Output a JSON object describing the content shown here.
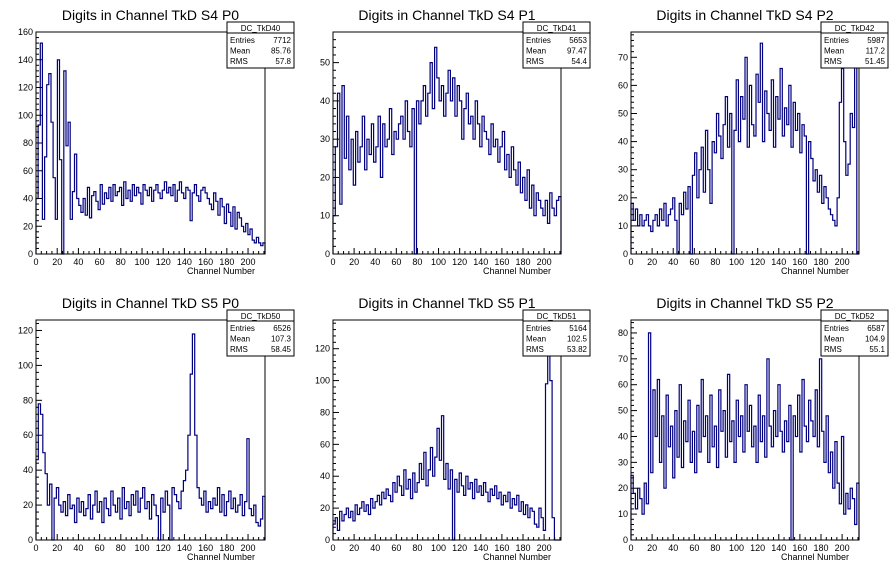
{
  "chart_data": [
    {
      "type": "histogram",
      "title": "Digits in Channel TkD S4 P0",
      "xlabel": "Channel Number",
      "xlim": [
        0,
        216
      ],
      "ylim": [
        0,
        160
      ],
      "xticks": [
        0,
        20,
        40,
        60,
        80,
        100,
        120,
        140,
        160,
        180,
        200
      ],
      "yticks": [
        0,
        20,
        40,
        60,
        80,
        100,
        120,
        140,
        160
      ],
      "stats": {
        "name": "DC_TkD40",
        "entries": "7712",
        "mean": "85.76",
        "rms": "57.8"
      },
      "values": [
        40,
        93,
        152,
        25,
        70,
        122,
        130,
        95,
        55,
        25,
        140,
        68,
        0,
        132,
        78,
        95,
        25,
        45,
        72,
        40,
        35,
        30,
        40,
        28,
        48,
        26,
        42,
        45,
        38,
        32,
        50,
        36,
        44,
        40,
        48,
        38,
        50,
        42,
        45,
        48,
        35,
        52,
        40,
        46,
        38,
        50,
        42,
        48,
        44,
        36,
        50,
        46,
        42,
        48,
        38,
        46,
        50,
        44,
        40,
        46,
        52,
        44,
        48,
        42,
        50,
        38,
        46,
        52,
        44,
        40,
        48,
        46,
        24,
        44,
        50,
        42,
        38,
        46,
        48,
        44,
        40,
        36,
        32,
        44,
        38,
        28,
        40,
        34,
        22,
        36,
        30,
        20,
        34,
        18,
        30,
        26,
        20,
        16,
        22,
        14,
        18,
        10,
        8,
        12,
        8,
        6,
        8
      ]
    },
    {
      "type": "histogram",
      "title": "Digits in Channel TkD S4 P1",
      "xlabel": "Channel Number",
      "xlim": [
        0,
        216
      ],
      "ylim": [
        0,
        58
      ],
      "xticks": [
        0,
        20,
        40,
        60,
        80,
        100,
        120,
        140,
        160,
        180,
        200
      ],
      "yticks": [
        0,
        10,
        20,
        30,
        40,
        50
      ],
      "stats": {
        "name": "DC_TkD41",
        "entries": "5653",
        "mean": "97.47",
        "rms": "54.4"
      },
      "values": [
        10,
        28,
        42,
        13,
        44,
        25,
        36,
        22,
        30,
        18,
        32,
        24,
        28,
        36,
        22,
        30,
        26,
        34,
        24,
        28,
        36,
        20,
        34,
        28,
        30,
        38,
        26,
        32,
        30,
        34,
        36,
        30,
        40,
        32,
        28,
        38,
        0,
        40,
        34,
        40,
        44,
        36,
        42,
        50,
        38,
        54,
        46,
        40,
        44,
        36,
        42,
        48,
        40,
        46,
        36,
        44,
        40,
        30,
        38,
        42,
        34,
        36,
        30,
        40,
        34,
        28,
        36,
        32,
        30,
        26,
        34,
        28,
        30,
        24,
        28,
        32,
        22,
        26,
        20,
        28,
        22,
        18,
        24,
        16,
        20,
        14,
        22,
        12,
        18,
        10,
        16,
        14,
        12,
        10,
        14,
        8,
        16,
        12,
        10,
        14,
        15
      ]
    },
    {
      "type": "histogram",
      "title": "Digits in Channel TkD S4 P2",
      "xlabel": "Channel Number",
      "xlim": [
        0,
        216
      ],
      "ylim": [
        0,
        79
      ],
      "xticks": [
        0,
        20,
        40,
        60,
        80,
        100,
        120,
        140,
        160,
        180,
        200
      ],
      "yticks": [
        0,
        10,
        20,
        30,
        40,
        50,
        60,
        70
      ],
      "stats": {
        "name": "DC_TkD42",
        "entries": "5987",
        "mean": "117.2",
        "rms": "51.45"
      },
      "values": [
        18,
        12,
        16,
        10,
        14,
        10,
        12,
        14,
        10,
        8,
        12,
        14,
        10,
        16,
        12,
        18,
        10,
        14,
        16,
        20,
        12,
        0,
        18,
        14,
        22,
        16,
        24,
        0,
        28,
        36,
        20,
        30,
        38,
        22,
        44,
        30,
        18,
        40,
        36,
        50,
        42,
        34,
        46,
        56,
        38,
        50,
        0,
        44,
        62,
        40,
        56,
        48,
        70,
        38,
        60,
        46,
        42,
        64,
        54,
        75,
        40,
        58,
        50,
        44,
        62,
        38,
        56,
        48,
        66,
        42,
        52,
        46,
        60,
        38,
        54,
        44,
        50,
        36,
        46,
        42,
        0,
        40,
        34,
        26,
        30,
        22,
        28,
        18,
        24,
        20,
        16,
        14,
        12,
        10,
        20,
        54,
        66,
        40,
        28,
        32,
        50,
        45,
        74,
        0
      ]
    },
    {
      "type": "histogram",
      "title": "Digits in Channel TkD S5 P0",
      "xlabel": "Channel Number",
      "xlim": [
        0,
        216
      ],
      "ylim": [
        0,
        126
      ],
      "xticks": [
        0,
        20,
        40,
        60,
        80,
        100,
        120,
        140,
        160,
        180,
        200
      ],
      "yticks": [
        0,
        20,
        40,
        60,
        80,
        100,
        120
      ],
      "stats": {
        "name": "DC_TkD50",
        "entries": "6526",
        "mean": "107.3",
        "rms": "58.45"
      },
      "values": [
        46,
        78,
        72,
        50,
        38,
        20,
        32,
        0,
        24,
        30,
        20,
        16,
        22,
        14,
        26,
        18,
        20,
        10,
        24,
        16,
        22,
        14,
        18,
        26,
        12,
        20,
        28,
        16,
        22,
        10,
        24,
        18,
        14,
        28,
        20,
        16,
        24,
        12,
        30,
        18,
        22,
        14,
        26,
        20,
        28,
        16,
        24,
        30,
        18,
        22,
        12,
        26,
        20,
        14,
        0,
        24,
        16,
        28,
        20,
        0,
        30,
        26,
        22,
        18,
        28,
        34,
        40,
        60,
        95,
        118,
        60,
        30,
        24,
        20,
        28,
        16,
        22,
        18,
        24,
        20,
        30,
        16,
        26,
        14,
        22,
        28,
        18,
        24,
        16,
        20,
        26,
        14,
        22,
        58,
        18,
        14,
        20,
        10,
        8,
        12,
        25
      ]
    },
    {
      "type": "histogram",
      "title": "Digits in Channel TkD S5 P1",
      "xlabel": "Channel Number",
      "xlim": [
        0,
        216
      ],
      "ylim": [
        0,
        138
      ],
      "xticks": [
        0,
        20,
        40,
        60,
        80,
        100,
        120,
        140,
        160,
        180,
        200
      ],
      "yticks": [
        0,
        20,
        40,
        60,
        80,
        100,
        120
      ],
      "stats": {
        "name": "DC_TkD51",
        "entries": "5164",
        "mean": "102.5",
        "rms": "53.82"
      },
      "values": [
        10,
        14,
        6,
        18,
        12,
        16,
        20,
        14,
        18,
        12,
        22,
        16,
        20,
        24,
        18,
        22,
        16,
        26,
        20,
        24,
        28,
        22,
        30,
        26,
        32,
        28,
        24,
        36,
        30,
        40,
        34,
        28,
        44,
        32,
        38,
        26,
        42,
        30,
        36,
        48,
        38,
        55,
        34,
        44,
        58,
        40,
        52,
        70,
        50,
        78,
        38,
        48,
        32,
        44,
        0,
        38,
        30,
        42,
        34,
        28,
        40,
        32,
        36,
        26,
        38,
        30,
        34,
        28,
        36,
        30,
        24,
        32,
        28,
        34,
        26,
        30,
        22,
        28,
        24,
        30,
        20,
        26,
        22,
        28,
        18,
        24,
        16,
        22,
        14,
        20,
        18,
        10,
        8,
        20,
        14,
        6,
        98,
        120,
        100,
        14,
        0,
        0,
        0
      ]
    },
    {
      "type": "histogram",
      "title": "Digits in Channel TkD S5 P2",
      "xlabel": "Channel Number",
      "xlim": [
        0,
        216
      ],
      "ylim": [
        0,
        85
      ],
      "xticks": [
        0,
        20,
        40,
        60,
        80,
        100,
        120,
        140,
        160,
        180,
        200
      ],
      "yticks": [
        0,
        10,
        20,
        30,
        40,
        50,
        60,
        70,
        80
      ],
      "stats": {
        "name": "DC_TkD52",
        "entries": "6587",
        "mean": "104.9",
        "rms": "55.1"
      },
      "values": [
        25,
        18,
        12,
        20,
        16,
        10,
        22,
        14,
        80,
        26,
        58,
        40,
        62,
        30,
        48,
        20,
        56,
        36,
        44,
        24,
        50,
        32,
        60,
        28,
        46,
        38,
        54,
        30,
        42,
        26,
        52,
        34,
        62,
        40,
        48,
        30,
        56,
        36,
        44,
        28,
        58,
        42,
        50,
        32,
        64,
        38,
        46,
        30,
        54,
        40,
        48,
        34,
        60,
        42,
        52,
        36,
        44,
        30,
        56,
        38,
        48,
        32,
        70,
        44,
        36,
        50,
        40,
        60,
        42,
        34,
        46,
        38,
        52,
        0,
        48,
        40,
        56,
        34,
        62,
        44,
        38,
        54,
        46,
        40,
        58,
        36,
        70,
        42,
        30,
        48,
        26,
        34,
        20,
        38,
        22,
        14,
        40,
        10,
        18,
        12,
        20,
        16,
        6,
        22
      ]
    }
  ]
}
